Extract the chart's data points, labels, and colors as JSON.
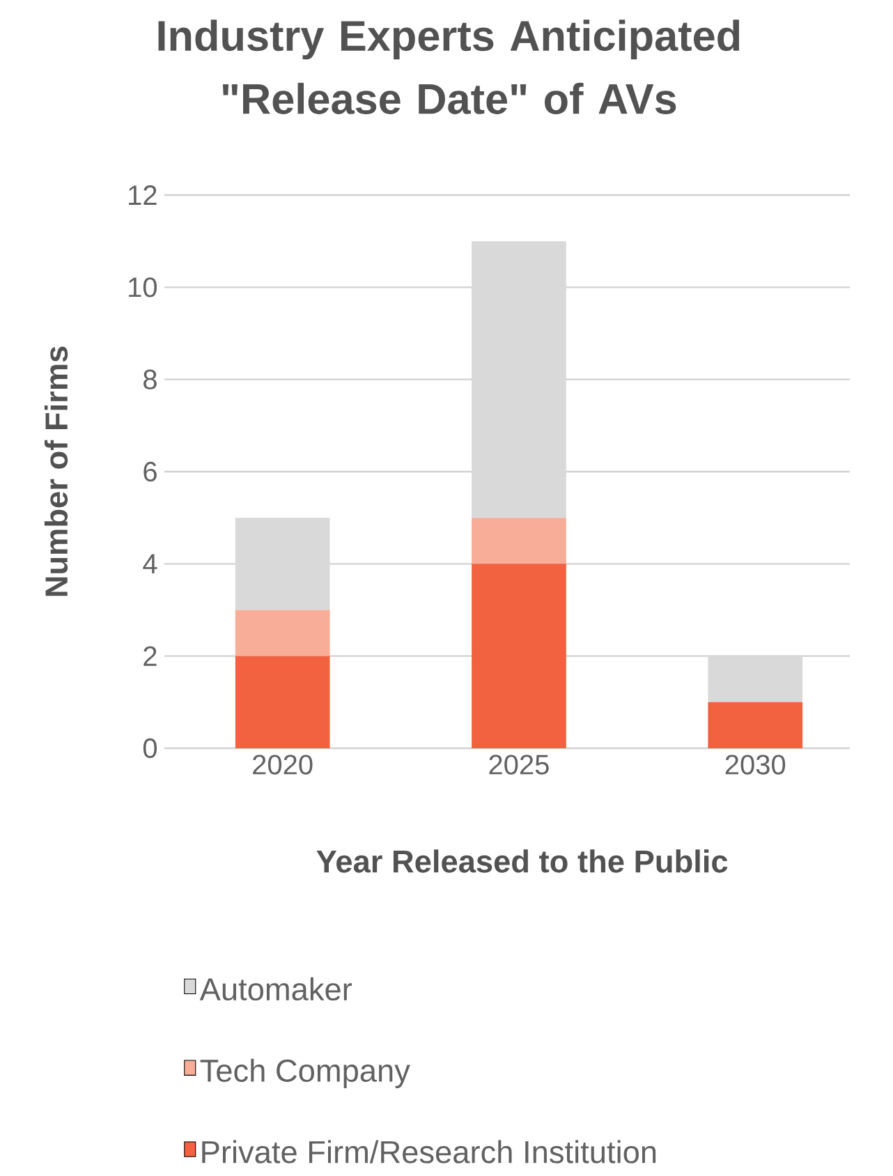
{
  "chart_data": {
    "type": "bar",
    "title": "Industry Experts Anticipated \"Release Date\" of AVs",
    "xlabel": "Year Released to the Public",
    "ylabel": "Number of Firms",
    "categories": [
      "2020",
      "2025",
      "2030"
    ],
    "series": [
      {
        "name": "Private Firm/Research Institution",
        "color": "#f26140",
        "values": [
          2,
          4,
          1
        ]
      },
      {
        "name": "Tech Company",
        "color": "#f7ad98",
        "values": [
          1,
          1,
          0
        ]
      },
      {
        "name": "Automaker",
        "color": "#d9d9d9",
        "values": [
          2,
          6,
          1
        ]
      }
    ],
    "stacked": true,
    "ylim": [
      0,
      12
    ],
    "yticks": [
      0,
      2,
      4,
      6,
      8,
      10,
      12
    ],
    "grid": "y",
    "legend": "bottom"
  }
}
